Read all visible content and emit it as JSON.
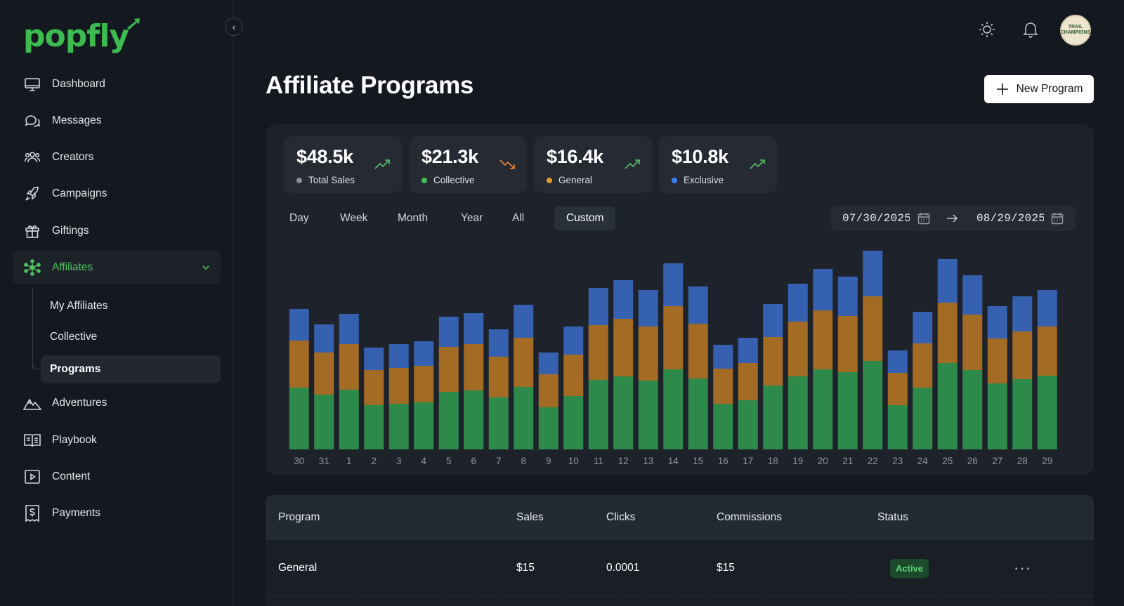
{
  "brand": {
    "name": "popfly",
    "accent": "#3dbb50"
  },
  "sidebar": {
    "items": [
      {
        "label": "Dashboard",
        "icon": "monitor-icon"
      },
      {
        "label": "Messages",
        "icon": "chat-bubbles-icon"
      },
      {
        "label": "Creators",
        "icon": "users-icon"
      },
      {
        "label": "Campaigns",
        "icon": "rocket-icon"
      },
      {
        "label": "Giftings",
        "icon": "gift-icon"
      },
      {
        "label": "Affiliates",
        "icon": "affiliate-network-icon"
      },
      {
        "label": "Adventures",
        "icon": "mountains-icon"
      },
      {
        "label": "Playbook",
        "icon": "book-icon"
      },
      {
        "label": "Content",
        "icon": "play-square-icon"
      },
      {
        "label": "Payments",
        "icon": "dollar-receipt-icon"
      }
    ],
    "affiliates_sub": [
      {
        "label": "My Affiliates"
      },
      {
        "label": "Collective"
      },
      {
        "label": "Programs"
      }
    ]
  },
  "header": {
    "title": "Affiliate Programs",
    "new_button": "New Program",
    "avatar_text": "TRAIL CHAMPIONS"
  },
  "stats": [
    {
      "value": "$48.5k",
      "label": "Total Sales",
      "color": "#8a8f97",
      "trend": "up"
    },
    {
      "value": "$21.3k",
      "label": "Collective",
      "color": "#3fbf5a",
      "trend": "down"
    },
    {
      "value": "$16.4k",
      "label": "General",
      "color": "#e89a2a",
      "trend": "up"
    },
    {
      "value": "$10.8k",
      "label": "Exclusive",
      "color": "#3b82f6",
      "trend": "up"
    }
  ],
  "range_tabs": [
    "Day",
    "Week",
    "Month",
    "Year",
    "All",
    "Custom"
  ],
  "date_range": {
    "start": "07/30/2025",
    "end": "08/29/2025"
  },
  "chart_data": {
    "type": "bar",
    "stacked": true,
    "categories": [
      "30",
      "31",
      "1",
      "2",
      "3",
      "4",
      "5",
      "6",
      "7",
      "8",
      "9",
      "10",
      "11",
      "12",
      "13",
      "14",
      "15",
      "16",
      "17",
      "18",
      "19",
      "20",
      "21",
      "22",
      "23",
      "24",
      "25",
      "26",
      "27",
      "28",
      "29"
    ],
    "series": [
      {
        "name": "Collective",
        "color": "#2d8a4b",
        "values": [
          88,
          78,
          85,
          63,
          65,
          67,
          82,
          84,
          74,
          89,
          60,
          76,
          99,
          104,
          98,
          114,
          101,
          65,
          70,
          91,
          104,
          114,
          110,
          126,
          63,
          88,
          123,
          113,
          94,
          100,
          105
        ]
      },
      {
        "name": "General",
        "color": "#a46b25",
        "values": [
          67,
          60,
          65,
          50,
          51,
          52,
          64,
          66,
          58,
          70,
          47,
          59,
          78,
          82,
          77,
          90,
          78,
          50,
          53,
          69,
          78,
          84,
          80,
          92,
          46,
          63,
          86,
          79,
          64,
          68,
          70
        ]
      },
      {
        "name": "Exclusive",
        "color": "#3561b0",
        "values": [
          45,
          40,
          43,
          32,
          34,
          35,
          43,
          44,
          39,
          47,
          31,
          40,
          53,
          55,
          52,
          61,
          53,
          34,
          36,
          47,
          54,
          59,
          56,
          65,
          32,
          45,
          62,
          56,
          46,
          50,
          52
        ]
      }
    ],
    "ylim": [
      0,
      290
    ]
  },
  "table": {
    "columns": [
      "Program",
      "Sales",
      "Clicks",
      "Commissions",
      "Status"
    ],
    "rows": [
      {
        "program": "General",
        "sales": "$15",
        "clicks": "0.0001",
        "commissions": "$15",
        "status": "Active",
        "more": "···"
      }
    ]
  }
}
